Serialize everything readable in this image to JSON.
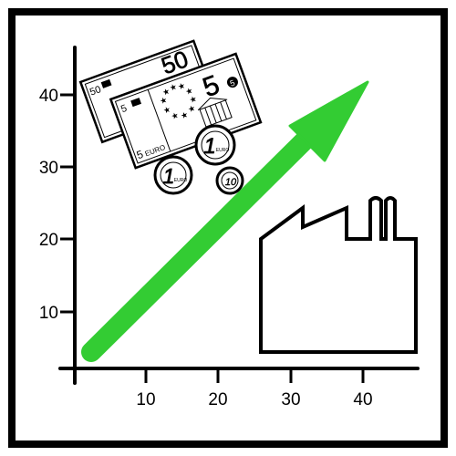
{
  "axes": {
    "y_ticks": [
      "10",
      "20",
      "30",
      "40"
    ],
    "x_ticks": [
      "10",
      "20",
      "30",
      "40"
    ]
  },
  "money": {
    "note_back_value": "50",
    "note_back_small_value": "50",
    "note_front_value": "5",
    "note_front_small_value": "5",
    "note_front_corner_value": "5",
    "note_front_bottom_value": "5",
    "note_front_currency": "EURO",
    "coin_large_value": "1",
    "coin_large_label": "EURO",
    "coin_small_value": "1",
    "coin_small_label": "EURO",
    "coin_cent_value": "10"
  },
  "colors": {
    "arrow": "#33cc33",
    "ink": "#000000",
    "background": "#ffffff"
  },
  "icons": {
    "trend": "up-arrow-icon",
    "building": "factory-icon",
    "money": "euro-banknotes-and-coins-icon"
  }
}
